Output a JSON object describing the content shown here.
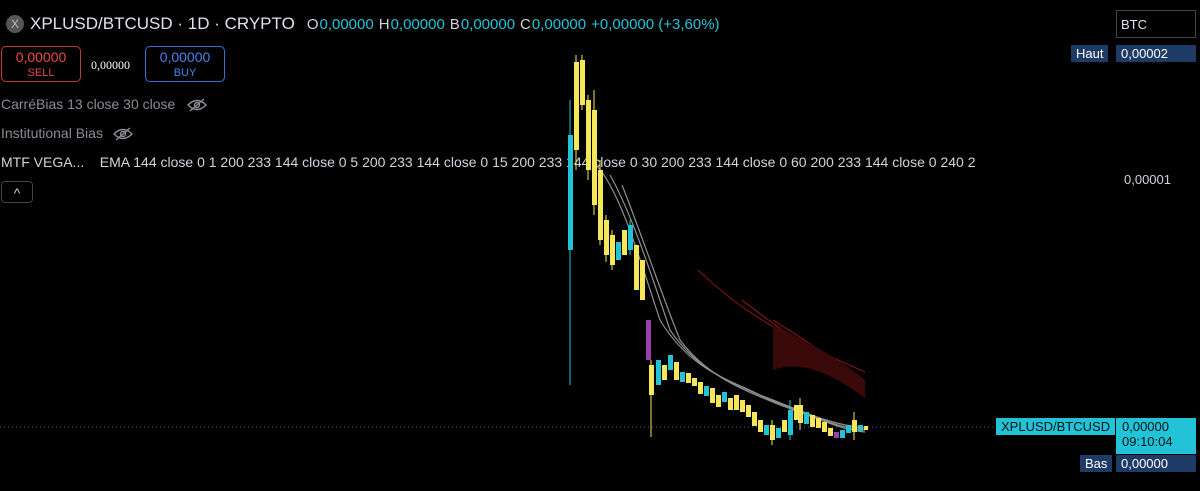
{
  "header": {
    "symbol": "XPLUSD/BTCUSD · 1D · CRYPTO",
    "ohlc": [
      {
        "label": "O",
        "value": "0,00000"
      },
      {
        "label": "H",
        "value": "0,00000"
      },
      {
        "label": "B",
        "value": "0,00000"
      },
      {
        "label": "C",
        "value": "0,00000"
      }
    ],
    "change": "+0,00000 (+3,60%)"
  },
  "trade": {
    "sell_price": "0,00000",
    "sell_label": "SELL",
    "spread": "0,00000",
    "buy_price": "0,00000",
    "buy_label": "BUY"
  },
  "indicators": [
    "CarréBias 13 close 30 close",
    "Institutional Bias",
    "MTF VEGA...",
    "EMA 144 close 0 1 200 233 144 close 0 5 200 233 144 close 0 15 200 233 144 close 0 30 200 233 144 close 0 60 200 233 144 close 0 240 2"
  ],
  "price_axis": {
    "currency": "BTC",
    "high_label": "Haut",
    "high_value": "0,00002",
    "tick": "0,00001",
    "symbol_tag": "XPLUSD/BTCUSD",
    "last_value": "0,00000",
    "countdown": "09:10:04",
    "low_label": "Bas",
    "low_value": "0,00000"
  }
}
